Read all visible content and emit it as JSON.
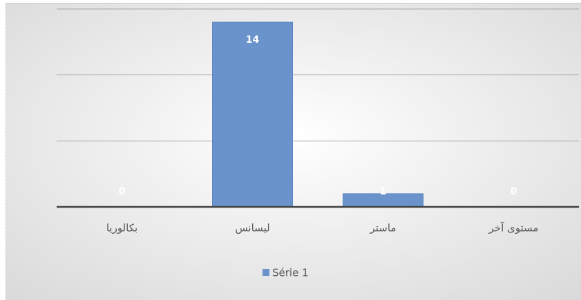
{
  "chart_data": {
    "type": "bar",
    "categories": [
      "بكالوريا",
      "ليسانس",
      "ماستر",
      "مستوى آخر"
    ],
    "series": [
      {
        "name": "Série 1",
        "color": "#6a93cc",
        "values": [
          0,
          14,
          1,
          0
        ]
      }
    ],
    "ylim": [
      0,
      15
    ],
    "yticks": [
      0,
      5,
      10,
      15
    ],
    "grid": true,
    "legend": "bottom"
  }
}
